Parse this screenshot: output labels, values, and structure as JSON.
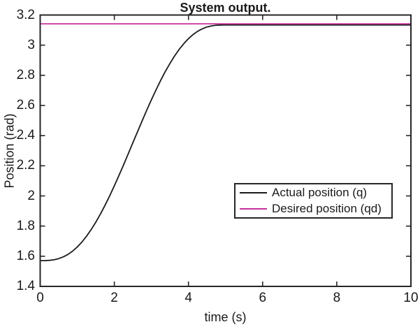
{
  "figure": {
    "background": "#ffffff"
  },
  "chart_data": {
    "type": "line",
    "title": "System output.",
    "xlabel": "time (s)",
    "ylabel": "Position (rad)",
    "xlim": [
      0,
      10
    ],
    "ylim": [
      1.4,
      3.2
    ],
    "xticks": [
      0,
      2,
      4,
      6,
      8,
      10
    ],
    "xtick_labels": [
      "0",
      "2",
      "4",
      "6",
      "8",
      "10"
    ],
    "yticks": [
      1.4,
      1.6,
      1.8,
      2.0,
      2.2,
      2.4,
      2.6,
      2.8,
      3.0,
      3.2
    ],
    "ytick_labels": [
      "1.4",
      "1.6",
      "1.8",
      "2",
      "2.2",
      "2.4",
      "2.6",
      "2.8",
      "3",
      "3.2"
    ],
    "grid": false,
    "box": true,
    "axis_color": "#262626",
    "legend": {
      "position": "inside-right-middle",
      "border": true,
      "entries": [
        {
          "label": "Actual position (q)",
          "color": "#1a1a1a"
        },
        {
          "label": "Desired position (qd)",
          "color": "#c9309f"
        }
      ]
    },
    "series": [
      {
        "name": "Actual position (q)",
        "color": "#1a1a1a",
        "width": 1.8,
        "x": [
          0,
          0.125,
          0.25,
          0.375,
          0.5,
          0.625,
          0.75,
          0.875,
          1,
          1.125,
          1.25,
          1.375,
          1.5,
          1.625,
          1.75,
          1.875,
          2,
          2.125,
          2.25,
          2.375,
          2.5,
          2.625,
          2.75,
          2.875,
          3,
          3.125,
          3.25,
          3.375,
          3.5,
          3.625,
          3.75,
          3.875,
          4,
          4.125,
          4.25,
          4.375,
          4.5,
          4.625,
          4.75,
          4.875,
          5,
          6,
          7,
          8,
          9,
          10
        ],
        "y": [
          1.5708,
          1.571,
          1.5726,
          1.5767,
          1.5842,
          1.5959,
          1.6124,
          1.6341,
          1.6613,
          1.6942,
          1.7326,
          1.7765,
          1.8257,
          1.8798,
          1.9384,
          2.001,
          2.067,
          2.1358,
          2.2068,
          2.2792,
          2.3524,
          2.4256,
          2.498,
          2.569,
          2.6378,
          2.7038,
          2.7664,
          2.825,
          2.8791,
          2.9283,
          2.9722,
          3.0107,
          3.0435,
          3.0707,
          3.0924,
          3.1089,
          3.1206,
          3.1281,
          3.1322,
          3.1338,
          3.134,
          3.134,
          3.134,
          3.134,
          3.134,
          3.134
        ]
      },
      {
        "name": "Desired position (qd)",
        "color": "#c9309f",
        "width": 1.7,
        "x": [
          0,
          10
        ],
        "y": [
          3.1416,
          3.1416
        ]
      }
    ]
  }
}
